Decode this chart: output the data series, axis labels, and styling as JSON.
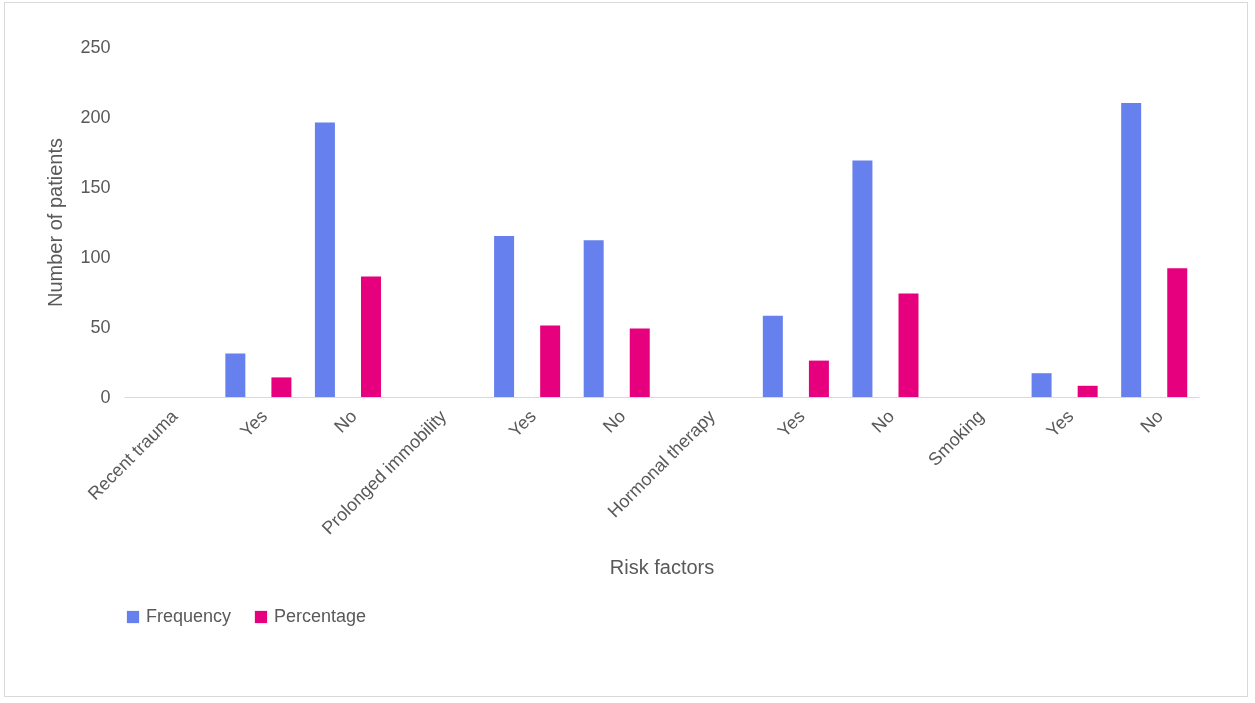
{
  "chart_data": {
    "type": "bar",
    "xlabel": "Risk factors",
    "ylabel": "Number of patients",
    "categories": [
      "Recent trauma",
      "Yes",
      "No",
      "Prolonged immobility",
      "Yes",
      "No",
      "Hormonal therapy",
      "Yes",
      "No",
      "Smoking",
      "Yes",
      "No"
    ],
    "series": [
      {
        "name": "Frequency",
        "color": "#6680ee",
        "values": [
          null,
          31,
          196,
          null,
          115,
          112,
          null,
          58,
          169,
          null,
          17,
          210
        ]
      },
      {
        "name": "Percentage",
        "color": "#e6007e",
        "values": [
          null,
          14,
          86,
          null,
          51,
          49,
          null,
          26,
          74,
          null,
          8,
          92
        ]
      }
    ],
    "ylim": [
      0,
      250
    ],
    "yticks": [
      0,
      50,
      100,
      150,
      200,
      250
    ],
    "grid": false,
    "legend": "bottom"
  }
}
